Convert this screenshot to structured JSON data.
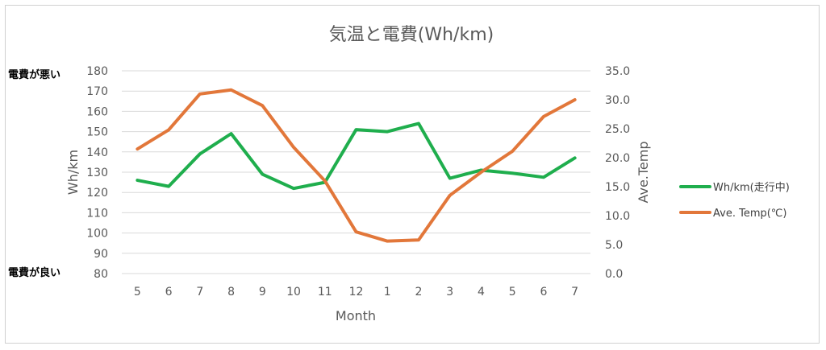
{
  "chart_data": {
    "type": "line",
    "title": "気温と電費(Wh/km)",
    "xlabel": "Month",
    "ylabel": "Wh/km",
    "y2label": "Ave.Temp",
    "categories": [
      "5",
      "6",
      "7",
      "8",
      "9",
      "10",
      "11",
      "12",
      "1",
      "2",
      "3",
      "4",
      "5",
      "6",
      "7"
    ],
    "ylim": [
      80,
      180
    ],
    "y2lim": [
      0,
      35
    ],
    "yticks": [
      "80",
      "90",
      "100",
      "110",
      "120",
      "130",
      "140",
      "150",
      "160",
      "170",
      "180"
    ],
    "y2ticks": [
      "0.0",
      "5.0",
      "10.0",
      "15.0",
      "20.0",
      "25.0",
      "30.0",
      "35.0"
    ],
    "grid": true,
    "legend_position": "right",
    "series": [
      {
        "name": "Wh/km(走行中)",
        "axis": "left",
        "color": "#1fae4d",
        "values": [
          126,
          123,
          139,
          149,
          129,
          122,
          125,
          151,
          150,
          154,
          127,
          131,
          129.5,
          127.5,
          137
        ]
      },
      {
        "name": "Ave. Temp(℃)",
        "axis": "right",
        "color": "#e2773a",
        "values": [
          21.5,
          24.8,
          31.0,
          31.7,
          29.0,
          21.8,
          16.0,
          7.2,
          5.6,
          5.8,
          13.5,
          17.5,
          21.1,
          27.1,
          30.0
        ]
      }
    ],
    "annotations": {
      "top": "電費が悪い",
      "bottom": "電費が良い"
    }
  }
}
